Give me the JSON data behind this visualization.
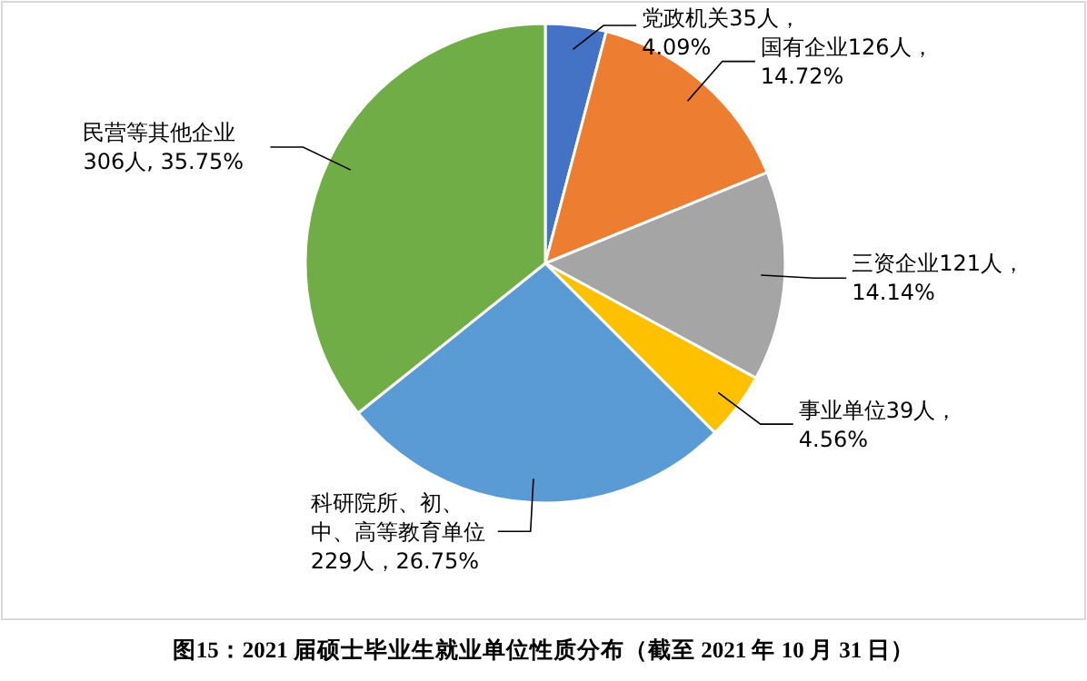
{
  "chart_data": {
    "type": "pie",
    "title": "图15：2021 届硕士毕业生就业单位性质分布（截至 2021 年 10 月 31 日）",
    "categories": [
      "党政机关",
      "国有企业",
      "三资企业",
      "事业单位",
      "科研院所、初、中、高等教育单位",
      "民营等其他企业"
    ],
    "values": [
      35,
      126,
      121,
      39,
      229,
      306
    ],
    "value_labels": [
      "35人，4.09%",
      "126人，14.72%",
      "121人，14.14%",
      "39人，4.56%",
      "229人，26.75%",
      "306人, 35.75%"
    ],
    "colors": [
      "#4472c4",
      "#ed7d31",
      "#a5a5a5",
      "#ffc000",
      "#5b9bd5",
      "#70ad47"
    ]
  }
}
